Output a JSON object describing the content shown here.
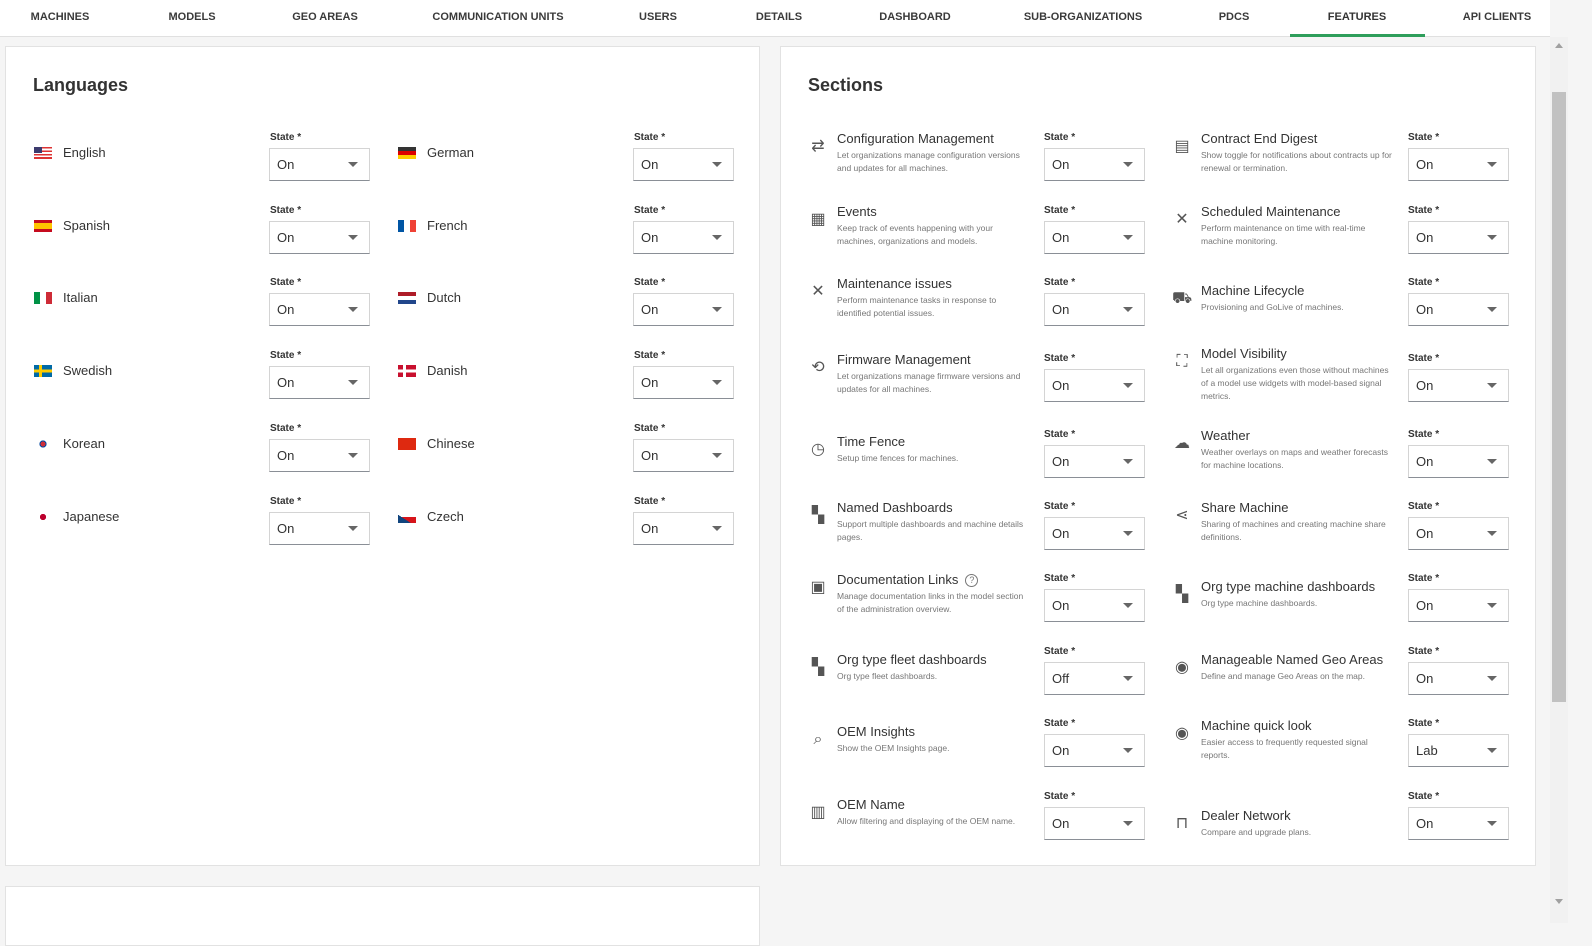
{
  "nav": {
    "tabs": [
      {
        "label": "MACHINES"
      },
      {
        "label": "MODELS"
      },
      {
        "label": "GEO AREAS"
      },
      {
        "label": "COMMUNICATION UNITS"
      },
      {
        "label": "USERS"
      },
      {
        "label": "DETAILS"
      },
      {
        "label": "DASHBOARD"
      },
      {
        "label": "SUB-ORGANIZATIONS"
      },
      {
        "label": "PDCS"
      },
      {
        "label": "FEATURES",
        "active": true
      },
      {
        "label": "API CLIENTS"
      }
    ],
    "accent_color": "#2e9e5b"
  },
  "languages": {
    "title": "Languages",
    "state_label": "State *",
    "items": [
      {
        "name": "English",
        "flag": "us",
        "state": "On"
      },
      {
        "name": "German",
        "flag": "de",
        "state": "On"
      },
      {
        "name": "Spanish",
        "flag": "es",
        "state": "On"
      },
      {
        "name": "French",
        "flag": "fr",
        "state": "On"
      },
      {
        "name": "Italian",
        "flag": "it",
        "state": "On"
      },
      {
        "name": "Dutch",
        "flag": "nl",
        "state": "On"
      },
      {
        "name": "Swedish",
        "flag": "se",
        "state": "On"
      },
      {
        "name": "Danish",
        "flag": "dk",
        "state": "On"
      },
      {
        "name": "Korean",
        "flag": "kr",
        "state": "On"
      },
      {
        "name": "Chinese",
        "flag": "cn",
        "state": "On"
      },
      {
        "name": "Japanese",
        "flag": "jp",
        "state": "On"
      },
      {
        "name": "Czech",
        "flag": "cz",
        "state": "On"
      }
    ]
  },
  "sections": {
    "title": "Sections",
    "state_label": "State *",
    "items": [
      {
        "title": "Configuration Management",
        "desc": "Let organizations manage configuration versions and updates for all machines.",
        "icon": "config-icon",
        "state": "On"
      },
      {
        "title": "Contract End Digest",
        "desc": "Show toggle for notifications about contracts up for renewal or termination.",
        "icon": "document-icon",
        "state": "On"
      },
      {
        "title": "Events",
        "desc": "Keep track of events happening with your machines, organizations and models.",
        "icon": "calendar-icon",
        "state": "On"
      },
      {
        "title": "Scheduled Maintenance",
        "desc": "Perform maintenance on time with real-time machine monitoring.",
        "icon": "tools-icon",
        "state": "On"
      },
      {
        "title": "Maintenance issues",
        "desc": "Perform maintenance tasks in response to identified potential issues.",
        "icon": "tools-icon",
        "state": "On"
      },
      {
        "title": "Machine Lifecycle",
        "desc": "Provisioning and GoLive of machines.",
        "icon": "tractor-icon",
        "state": "On"
      },
      {
        "title": "Firmware Management",
        "desc": "Let organizations manage firmware versions and updates for all machines.",
        "icon": "firmware-icon",
        "state": "On"
      },
      {
        "title": "Model Visibility",
        "desc": "Let all organizations even those without machines of a model use widgets with model-based signal metrics.",
        "icon": "hierarchy-icon",
        "state": "On"
      },
      {
        "title": "Time Fence",
        "desc": "Setup time fences for machines.",
        "icon": "calendar-clock-icon",
        "state": "On"
      },
      {
        "title": "Weather",
        "desc": "Weather overlays on maps and weather forecasts for machine locations.",
        "icon": "cloud-icon",
        "state": "On"
      },
      {
        "title": "Named Dashboards",
        "desc": "Support multiple dashboards and machine details pages.",
        "icon": "grid-icon",
        "state": "On"
      },
      {
        "title": "Share Machine",
        "desc": "Sharing of machines and creating machine share definitions.",
        "icon": "share-icon",
        "state": "On"
      },
      {
        "title": "Documentation Links",
        "desc": "Manage documentation links in the model section of the administration overview.",
        "icon": "doc-link-icon",
        "state": "On",
        "help": "?"
      },
      {
        "title": "Org type machine dashboards",
        "desc": "Org type machine dashboards.",
        "icon": "grid-icon",
        "state": "On"
      },
      {
        "title": "Org type fleet dashboards",
        "desc": "Org type fleet dashboards.",
        "icon": "grid-icon",
        "state": "Off"
      },
      {
        "title": "Manageable Named Geo Areas",
        "desc": "Define and manage Geo Areas on the map.",
        "icon": "location-pin-icon",
        "state": "On"
      },
      {
        "title": "OEM Insights",
        "desc": "Show the OEM Insights page.",
        "icon": "insights-icon",
        "state": "On"
      },
      {
        "title": "Machine quick look",
        "desc": "Easier access to frequently requested signal reports.",
        "icon": "eye-icon",
        "state": "Lab"
      },
      {
        "title": "OEM Name",
        "desc": "Allow filtering and displaying of the OEM name.",
        "icon": "factory-icon",
        "state": "On"
      },
      {
        "title": "Dealer Network",
        "desc": "Compare and upgrade plans.",
        "icon": "network-icon",
        "state": "On"
      }
    ]
  }
}
